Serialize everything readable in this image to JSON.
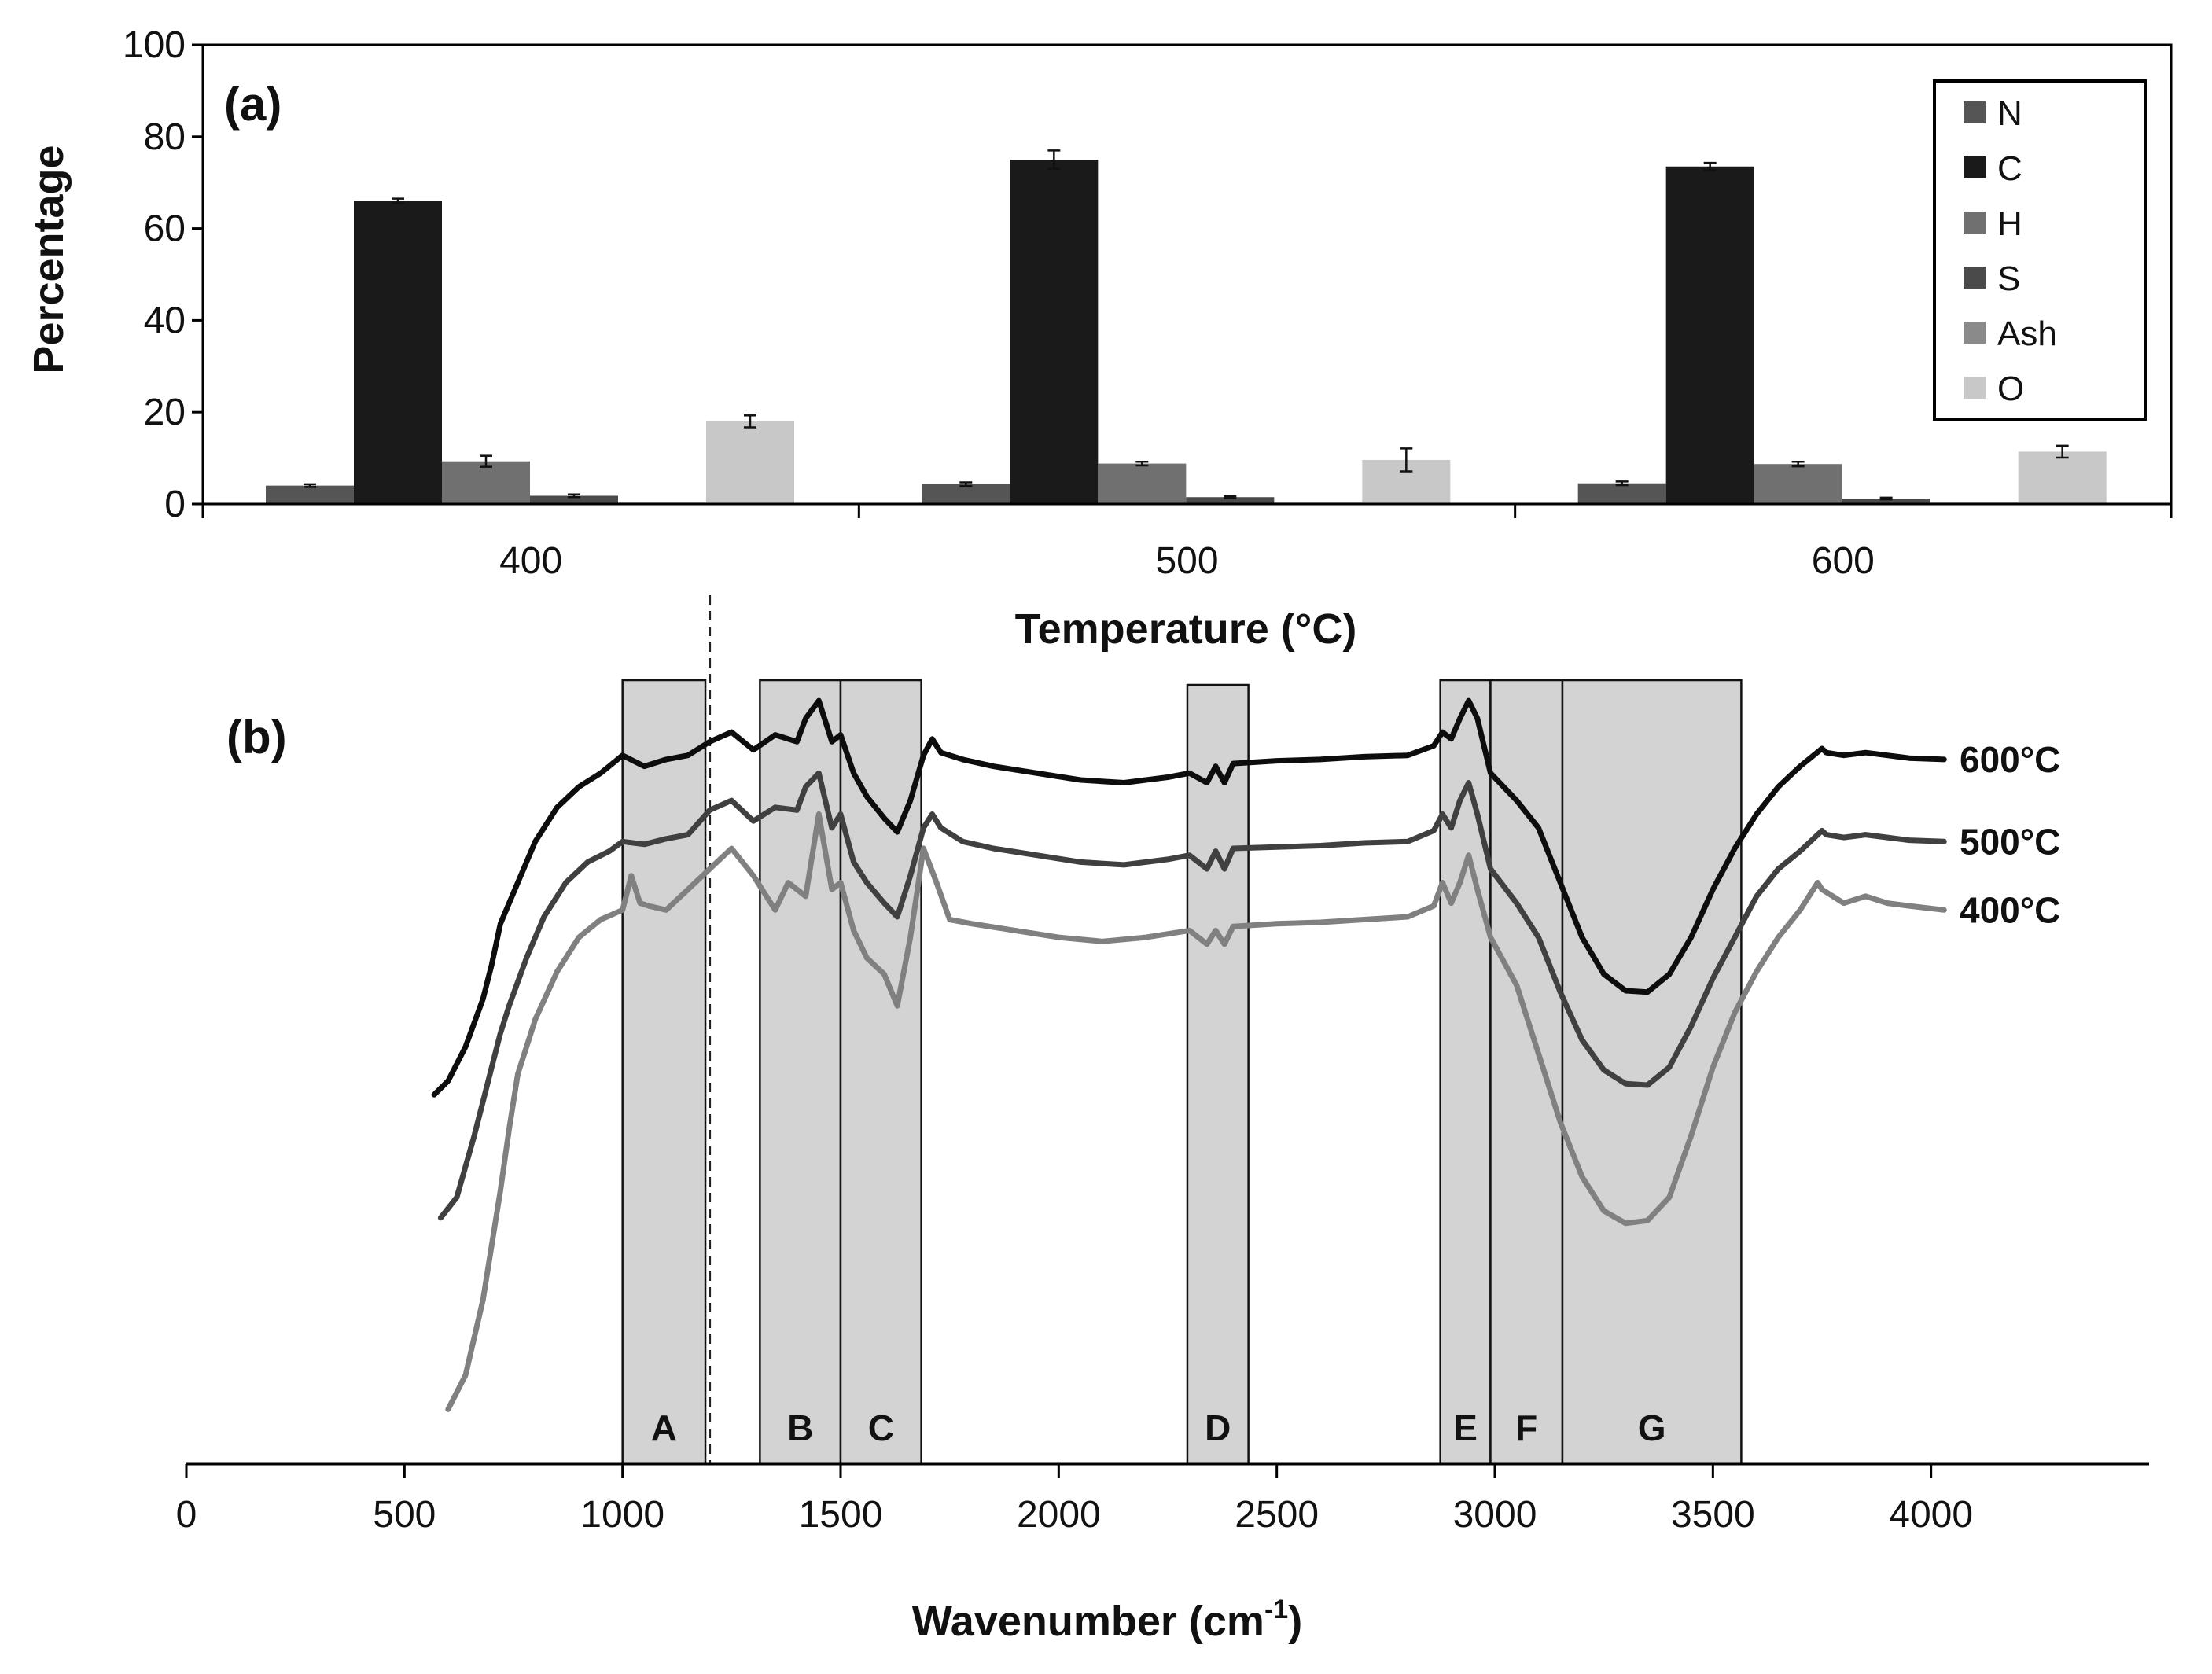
{
  "chart_data": [
    {
      "panel": "(a)",
      "type": "bar",
      "categories": [
        "400",
        "500",
        "600"
      ],
      "series": [
        {
          "name": "N",
          "color": "#555555",
          "values": [
            4.0,
            4.3,
            4.5
          ],
          "errors": [
            0.3,
            0.4,
            0.4
          ]
        },
        {
          "name": "C",
          "color": "#1a1a1a",
          "values": [
            66.0,
            75.0,
            73.5
          ],
          "errors": [
            0.5,
            2.0,
            0.8
          ]
        },
        {
          "name": "H",
          "color": "#707070",
          "values": [
            9.3,
            8.8,
            8.7
          ],
          "errors": [
            1.2,
            0.4,
            0.5
          ]
        },
        {
          "name": "S",
          "color": "#4a4a4a",
          "values": [
            1.8,
            1.5,
            1.2
          ],
          "errors": [
            0.3,
            0.2,
            0.2
          ]
        },
        {
          "name": "Ash",
          "color": "#8a8a8a",
          "values": [
            0.3,
            0.3,
            0.3
          ],
          "errors": [
            0,
            0,
            0
          ]
        },
        {
          "name": "O",
          "color": "#c8c8c8",
          "values": [
            18.0,
            9.6,
            11.4
          ],
          "errors": [
            1.3,
            2.5,
            1.3
          ]
        }
      ],
      "xlabel": "Temperature (°C)",
      "ylabel": "Percentage",
      "ylim": [
        0,
        100
      ],
      "yticks": [
        0,
        20,
        40,
        60,
        80,
        100
      ],
      "legend_position": "top-right"
    },
    {
      "panel": "(b)",
      "type": "line",
      "xlabel": "Wavenumber (cm",
      "xlabel_sup": "-1",
      "xlabel_end": ")",
      "xlim": [
        0,
        4500
      ],
      "xticks": [
        0,
        500,
        1000,
        1500,
        2000,
        2500,
        3000,
        3500,
        4000
      ],
      "y_units": "arbitrary (offset transmittance)",
      "reference_line_wavenumber": 1200,
      "bands": [
        {
          "label": "A",
          "from": 1000,
          "to": 1190
        },
        {
          "label": "B",
          "from": 1315,
          "to": 1500
        },
        {
          "label": "C",
          "from": 1500,
          "to": 1685
        },
        {
          "label": "D",
          "from": 2295,
          "to": 2435
        },
        {
          "label": "E",
          "from": 2875,
          "to": 2990
        },
        {
          "label": "F",
          "from": 2990,
          "to": 3155
        },
        {
          "label": "G",
          "from": 3155,
          "to": 3565
        }
      ],
      "series": [
        {
          "name": "600°C",
          "color": "#0d0d0d",
          "x": [
            568,
            600,
            640,
            680,
            700,
            720,
            760,
            800,
            850,
            900,
            950,
            1000,
            1050,
            1100,
            1150,
            1200,
            1250,
            1300,
            1350,
            1400,
            1420,
            1450,
            1480,
            1500,
            1530,
            1560,
            1600,
            1630,
            1660,
            1690,
            1710,
            1730,
            1780,
            1850,
            1950,
            2050,
            2150,
            2250,
            2300,
            2340,
            2360,
            2380,
            2400,
            2500,
            2600,
            2700,
            2800,
            2860,
            2880,
            2900,
            2920,
            2940,
            2960,
            2990,
            3050,
            3100,
            3150,
            3200,
            3250,
            3300,
            3350,
            3400,
            3450,
            3500,
            3550,
            3600,
            3650,
            3700,
            3750,
            3760,
            3800,
            3850,
            3900,
            3950,
            4030
          ],
          "y": [
            27.0,
            28.0,
            30.5,
            34.0,
            36.5,
            39.5,
            42.5,
            45.5,
            48.0,
            49.5,
            50.5,
            51.8,
            51.0,
            51.5,
            51.8,
            52.8,
            53.5,
            52.2,
            53.3,
            52.8,
            54.5,
            55.8,
            52.8,
            53.3,
            50.5,
            48.8,
            47.2,
            46.2,
            48.5,
            51.8,
            53.0,
            52.0,
            51.5,
            51.0,
            50.5,
            50.0,
            49.8,
            50.2,
            50.5,
            49.8,
            51.0,
            49.8,
            51.2,
            51.4,
            51.5,
            51.7,
            51.8,
            52.5,
            53.5,
            53.0,
            54.5,
            55.8,
            54.5,
            50.5,
            48.5,
            46.5,
            42.5,
            38.5,
            35.8,
            34.6,
            34.5,
            35.8,
            38.5,
            42.0,
            45.0,
            47.5,
            49.5,
            51.0,
            52.3,
            52.0,
            51.8,
            52.0,
            51.8,
            51.6,
            51.5
          ]
        },
        {
          "name": "500°C",
          "color": "#404040",
          "x": [
            583,
            620,
            660,
            700,
            720,
            740,
            780,
            820,
            870,
            920,
            970,
            1000,
            1050,
            1100,
            1150,
            1200,
            1250,
            1300,
            1350,
            1400,
            1420,
            1450,
            1480,
            1500,
            1530,
            1560,
            1600,
            1630,
            1660,
            1690,
            1710,
            1730,
            1780,
            1850,
            1950,
            2050,
            2150,
            2250,
            2300,
            2340,
            2360,
            2380,
            2400,
            2500,
            2600,
            2700,
            2800,
            2860,
            2880,
            2900,
            2920,
            2940,
            2960,
            2990,
            3050,
            3100,
            3150,
            3200,
            3250,
            3300,
            3350,
            3400,
            3450,
            3500,
            3550,
            3600,
            3650,
            3700,
            3750,
            3760,
            3800,
            3850,
            3900,
            3950,
            4030
          ],
          "y": [
            18.0,
            19.5,
            24.0,
            29.0,
            31.5,
            33.5,
            37.0,
            40.0,
            42.5,
            44.0,
            44.8,
            45.5,
            45.3,
            45.7,
            46.0,
            47.8,
            48.5,
            47.0,
            48.0,
            47.8,
            49.5,
            50.5,
            46.5,
            47.5,
            44.0,
            42.5,
            41.0,
            40.0,
            43.0,
            46.5,
            47.5,
            46.5,
            45.5,
            45.0,
            44.5,
            44.0,
            43.8,
            44.2,
            44.5,
            43.5,
            44.8,
            43.5,
            45.0,
            45.1,
            45.2,
            45.4,
            45.5,
            46.3,
            47.5,
            46.5,
            48.5,
            49.8,
            47.5,
            43.5,
            41.0,
            38.5,
            34.5,
            31.0,
            28.8,
            27.8,
            27.7,
            29.0,
            32.0,
            35.5,
            38.5,
            41.5,
            43.5,
            44.8,
            46.3,
            46.0,
            45.8,
            46.0,
            45.8,
            45.6,
            45.5
          ]
        },
        {
          "name": "400°C",
          "color": "#808080",
          "x": [
            600,
            640,
            680,
            720,
            740,
            760,
            800,
            850,
            900,
            950,
            1000,
            1020,
            1040,
            1060,
            1100,
            1150,
            1200,
            1250,
            1300,
            1350,
            1380,
            1420,
            1450,
            1480,
            1500,
            1530,
            1560,
            1600,
            1630,
            1660,
            1690,
            1720,
            1750,
            1800,
            1900,
            2000,
            2100,
            2200,
            2300,
            2340,
            2360,
            2380,
            2400,
            2500,
            2600,
            2700,
            2800,
            2860,
            2880,
            2900,
            2920,
            2940,
            2960,
            2990,
            3050,
            3100,
            3150,
            3200,
            3250,
            3300,
            3350,
            3400,
            3450,
            3500,
            3550,
            3600,
            3650,
            3700,
            3740,
            3750,
            3800,
            3850,
            3900,
            3950,
            4030
          ],
          "y": [
            4.0,
            6.5,
            12.0,
            20.0,
            24.5,
            28.5,
            32.5,
            36.0,
            38.5,
            39.8,
            40.5,
            43.0,
            41.0,
            40.8,
            40.5,
            42.0,
            43.5,
            45.0,
            43.0,
            40.5,
            42.5,
            41.5,
            47.5,
            42.0,
            42.5,
            39.0,
            37.0,
            35.8,
            33.5,
            38.5,
            45.0,
            42.5,
            39.8,
            39.5,
            39.0,
            38.5,
            38.2,
            38.5,
            39.0,
            38.0,
            39.0,
            38.0,
            39.3,
            39.5,
            39.6,
            39.8,
            40.0,
            40.8,
            42.5,
            41.0,
            42.5,
            44.5,
            42.0,
            38.5,
            35.0,
            30.0,
            25.0,
            21.0,
            18.5,
            17.6,
            17.8,
            19.5,
            24.0,
            29.0,
            33.0,
            36.0,
            38.5,
            40.5,
            42.5,
            42.0,
            41.0,
            41.5,
            41.0,
            40.8,
            40.5
          ]
        }
      ]
    }
  ]
}
